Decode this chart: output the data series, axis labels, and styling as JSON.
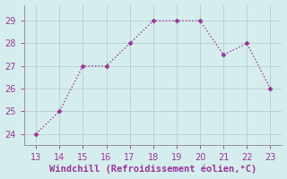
{
  "x": [
    13,
    14,
    15,
    16,
    17,
    18,
    19,
    20,
    21,
    22,
    23
  ],
  "y": [
    24,
    25,
    27,
    27,
    28,
    29,
    29,
    29,
    27.5,
    28,
    26
  ],
  "line_color": "#993399",
  "marker": "D",
  "marker_size": 2.5,
  "background_color": "#d5eeed",
  "grid_color": "#bbcccc",
  "xlabel": "Windchill (Refroidissement éolien,°C)",
  "xlabel_color": "#993399",
  "xlabel_fontsize": 7.5,
  "tick_color": "#993399",
  "tick_fontsize": 7,
  "xlim": [
    12.5,
    23.5
  ],
  "ylim": [
    23.5,
    29.7
  ],
  "yticks": [
    24,
    25,
    26,
    27,
    28,
    29
  ],
  "xticks": [
    13,
    14,
    15,
    16,
    17,
    18,
    19,
    20,
    21,
    22,
    23
  ],
  "spine_color": "#888888",
  "line_width": 1.0
}
